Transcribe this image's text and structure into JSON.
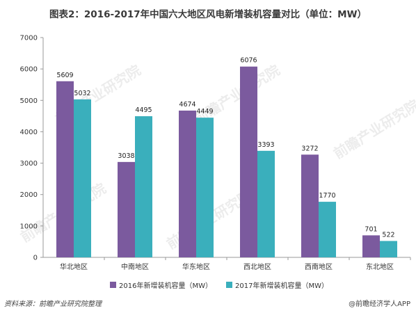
{
  "title": "图表2：2016-2017年中国六大地区风电新增装机容量对比（单位：MW）",
  "source": "资料来源：前瞻产业研究院整理",
  "brand": "@前瞻经济学人APP",
  "watermark": "前瞻产业研究院",
  "colors": {
    "series2016": "#7b5a9e",
    "series2017": "#3aafbc",
    "axis": "#999999"
  },
  "chart_data": {
    "type": "bar",
    "categories": [
      "华北地区",
      "中南地区",
      "华东地区",
      "西北地区",
      "西南地区",
      "东北地区"
    ],
    "series": [
      {
        "name": "2016年新增装机容量（MW）",
        "values": [
          5609,
          3038,
          4674,
          6076,
          3272,
          701
        ]
      },
      {
        "name": "2017年新增装机容量（MW）",
        "values": [
          5032,
          4495,
          4449,
          3393,
          1770,
          522
        ]
      }
    ],
    "ylim": [
      0,
      7000
    ],
    "yticks": [
      0,
      1000,
      2000,
      3000,
      4000,
      5000,
      6000,
      7000
    ],
    "grid": false,
    "legend_position": "bottom"
  }
}
